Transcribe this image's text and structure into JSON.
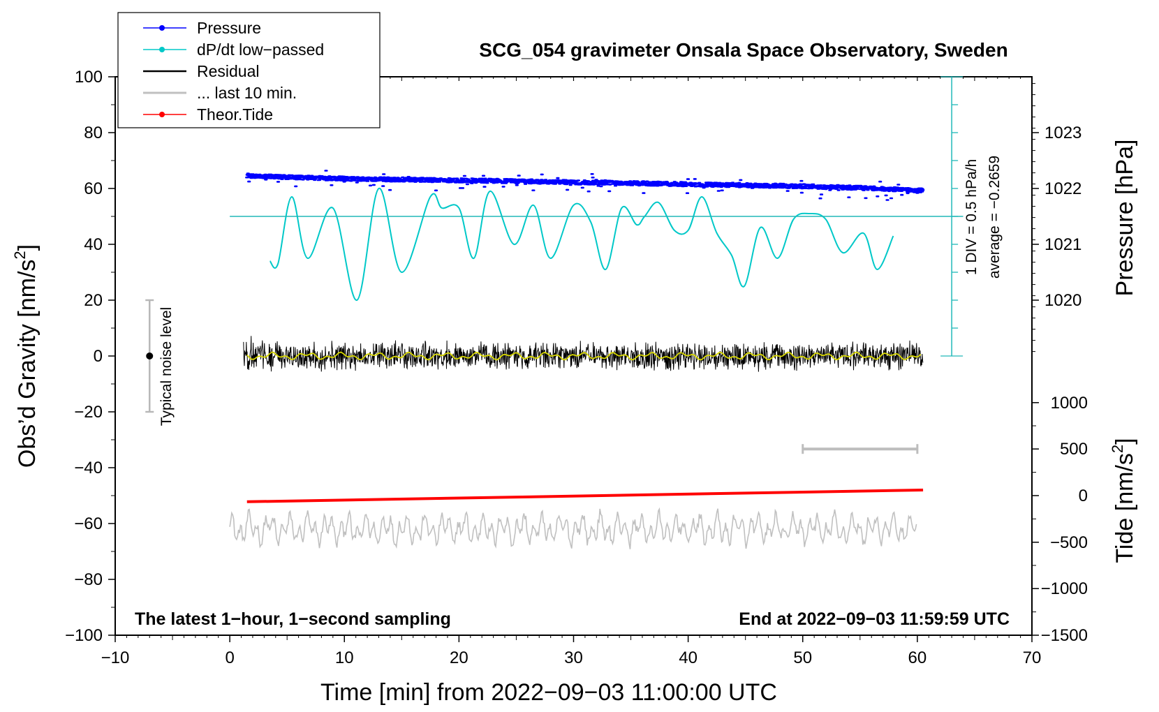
{
  "chart_data": {
    "type": "line",
    "title": "SCG_054 gravimeter Onsala Space Observatory, Sweden",
    "xlabel": "Time [min] from 2022−09−03 11:00:00 UTC",
    "ylabel_left_main": "Obs’d Gravity [nm/s",
    "ylabel_left_sup": "2",
    "ylabel_left_close": "]",
    "ylabel_right_top": "Pressure [hPa]",
    "ylabel_right_bottom_main": "Tide [nm/s",
    "ylabel_right_bottom_sup": "2",
    "ylabel_right_bottom_close": "]",
    "xlim": [
      -10,
      70
    ],
    "ylim": [
      -100,
      100
    ],
    "x_ticks": [
      -10,
      0,
      10,
      20,
      30,
      40,
      50,
      60,
      70
    ],
    "x_tick_labels": [
      "−10",
      "0",
      "10",
      "20",
      "30",
      "40",
      "50",
      "60",
      "70"
    ],
    "y_ticks": [
      100,
      80,
      60,
      40,
      20,
      0,
      -20,
      -40,
      -60,
      -80,
      -100
    ],
    "y_tick_labels": [
      "100",
      "80",
      "60",
      "40",
      "20",
      "0",
      "−20",
      "−40",
      "−60",
      "−80",
      "−100"
    ],
    "pressure_axis": {
      "ticks": [
        1020,
        1021,
        1022,
        1023
      ],
      "tick_labels": [
        "1020",
        "1021",
        "1022",
        "1023"
      ],
      "g_equiv": [
        20,
        40,
        60,
        80
      ]
    },
    "tide_axis": {
      "ticks": [
        1000,
        500,
        0,
        -500,
        -1000,
        -1500
      ],
      "tick_labels": [
        "1000",
        "500",
        "0",
        "−500",
        "−1000",
        "−1500"
      ],
      "g_equiv": [
        -16.7,
        -33.3,
        -50,
        -66.7,
        -83.3,
        -100
      ]
    },
    "legend": {
      "position": "top-left",
      "entries": [
        {
          "label": "Pressure",
          "color": "#0000ff",
          "marker": true
        },
        {
          "label": "dP/dt low−passed",
          "color": "#00c8c8",
          "marker": true
        },
        {
          "label": "Residual",
          "color": "#000000",
          "marker": false
        },
        {
          "label": "... last 10 min.",
          "color": "#c0c0c0",
          "marker": false
        },
        {
          "label": "Theor.Tide",
          "color": "#ff0000",
          "marker": true
        }
      ]
    },
    "annotations": {
      "noise_label": "Typical noise level",
      "noise_range": [
        -20,
        20
      ],
      "noise_x": -7,
      "div_label": "1 DIV = 0.5 hPa/h",
      "average_label": "average = −0.2659",
      "bottom_left": "The latest 1−hour, 1−second sampling",
      "bottom_right": "End at 2022−09−03 11:59:59 UTC",
      "gray_bracket_x": [
        50,
        60
      ],
      "gray_bracket_y": -33.3,
      "dpdt_scale_x": 63,
      "dpdt_scale_range": [
        0,
        100
      ],
      "dpdt_baseline": 50,
      "dpdt_baseline_xrange": [
        0,
        64
      ]
    },
    "series": [
      {
        "name": "Pressure",
        "color": "#0000ff",
        "x": [
          1.5,
          5,
          10,
          15,
          20,
          25,
          30,
          35,
          40,
          45,
          50,
          55,
          60.5
        ],
        "values": [
          64.6,
          64.0,
          63.5,
          63.2,
          62.9,
          62.6,
          62.2,
          61.9,
          61.5,
          61.2,
          60.8,
          60.2,
          59.3
        ]
      },
      {
        "name": "dP/dt low-passed",
        "color": "#00c8c8",
        "x": [
          3.5,
          4.2,
          5.4,
          6.8,
          9.0,
          11.1,
          13.0,
          15.0,
          17.5,
          18.5,
          20.0,
          21.3,
          22.7,
          24.8,
          26.5,
          28.0,
          30.0,
          31.5,
          32.8,
          34.2,
          35.5,
          36.2,
          37.4,
          38.8,
          40.0,
          41.2,
          42.5,
          43.8,
          44.9,
          46.3,
          47.8,
          49.2,
          50.6,
          52.0,
          53.5,
          55.3,
          56.5,
          57.9
        ],
        "values": [
          34,
          33,
          57,
          35,
          53,
          20,
          60,
          30,
          57,
          53,
          53,
          35,
          59,
          40,
          54,
          35,
          54,
          48,
          31,
          53,
          47,
          50,
          55,
          45,
          45,
          57,
          44,
          36,
          25,
          46,
          35,
          49,
          51,
          49,
          37,
          44,
          31,
          43
        ]
      },
      {
        "name": "Residual",
        "color": "#000000",
        "x": [
          1.2,
          60.5
        ],
        "values": [
          0,
          0
        ]
      },
      {
        "name": "... last 10 min.",
        "color": "#c0c0c0",
        "x": [
          0,
          60
        ],
        "values": [
          -62,
          -62
        ]
      },
      {
        "name": "Theor.Tide",
        "color": "#ff0000",
        "x": [
          1.5,
          60.5
        ],
        "values": [
          -52.2,
          -48.0
        ]
      }
    ]
  }
}
